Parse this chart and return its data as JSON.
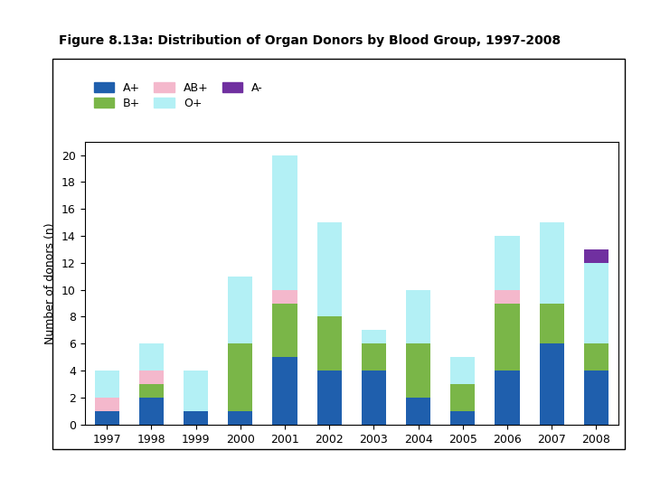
{
  "title": "Figure 8.13a: Distribution of Organ Donors by Blood Group, 1997-2008",
  "years": [
    1997,
    1998,
    1999,
    2000,
    2001,
    2002,
    2003,
    2004,
    2005,
    2006,
    2007,
    2008
  ],
  "Aplus": [
    1,
    2,
    1,
    1,
    5,
    4,
    4,
    2,
    1,
    4,
    6,
    4
  ],
  "Bplus": [
    0,
    1,
    0,
    5,
    4,
    4,
    2,
    4,
    2,
    5,
    3,
    2
  ],
  "ABplus": [
    1,
    1,
    0,
    0,
    1,
    0,
    0,
    0,
    0,
    1,
    0,
    0
  ],
  "Oplus": [
    2,
    2,
    3,
    5,
    10,
    7,
    1,
    4,
    2,
    4,
    6,
    6
  ],
  "Aminus": [
    0,
    0,
    0,
    0,
    0,
    0,
    0,
    0,
    0,
    0,
    0,
    1
  ],
  "colors": {
    "Aplus": "#1f5fad",
    "Bplus": "#7ab648",
    "ABplus": "#f4b8cc",
    "Oplus": "#b3f0f5",
    "Aminus": "#7030a0"
  },
  "ylabel": "Number of donors (n)",
  "ylim": [
    0,
    21
  ],
  "yticks": [
    0,
    2,
    4,
    6,
    8,
    10,
    12,
    14,
    16,
    18,
    20
  ],
  "bar_width": 0.55,
  "figsize": [
    7.2,
    5.4
  ],
  "dpi": 100
}
